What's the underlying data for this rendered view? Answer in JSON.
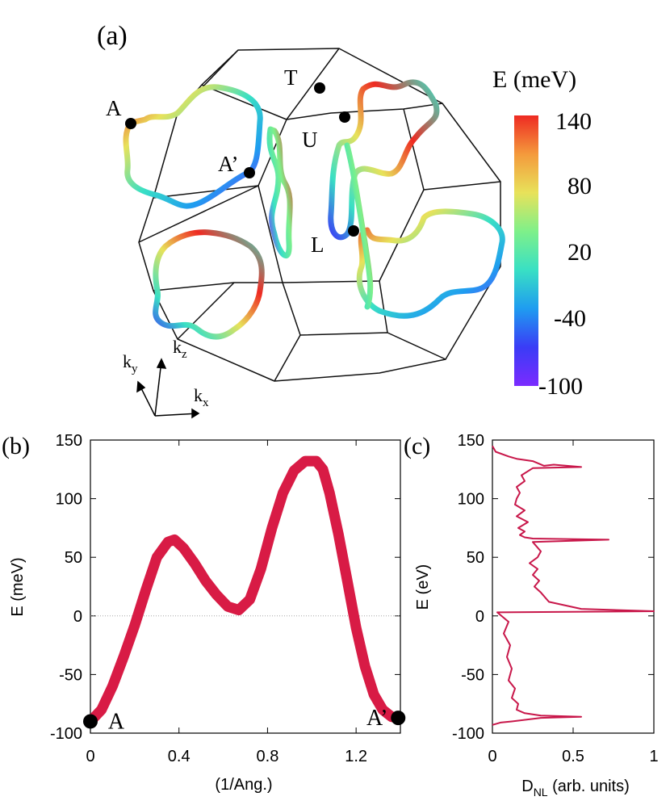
{
  "panel_a": {
    "label": "(a)",
    "points": [
      {
        "name": "point-A",
        "label": "A"
      },
      {
        "name": "point-A-prime",
        "label": "A’"
      },
      {
        "name": "point-T",
        "label": "T"
      },
      {
        "name": "point-U",
        "label": "U"
      },
      {
        "name": "point-L",
        "label": "L"
      }
    ],
    "axes": {
      "ky": "k",
      "ky_sub": "y",
      "kz": "k",
      "kz_sub": "z",
      "kx": "k",
      "kx_sub": "x"
    },
    "colorbar": {
      "title": "E (meV)",
      "ticks": [
        "140",
        "80",
        "20",
        "-40",
        "-100"
      ],
      "min": -100,
      "max": 140,
      "colors": [
        "#7b2bff",
        "#3a3cf6",
        "#1f9cf0",
        "#39e0c4",
        "#7ef08a",
        "#e8e25a",
        "#f49a3c",
        "#ee2a22"
      ]
    }
  },
  "chart_data": [
    {
      "id": "b",
      "label": "(b)",
      "type": "line",
      "title": "",
      "xlabel": "(1/Ang.)",
      "ylabel": "E (meV)",
      "xlim": [
        0,
        1.4
      ],
      "ylim": [
        -100,
        150
      ],
      "xticks": [
        "0",
        "0.4",
        "0.8",
        "1.2"
      ],
      "xtick_values": [
        0,
        0.4,
        0.8,
        1.2
      ],
      "yticks": [
        "150",
        "100",
        "50",
        "0",
        "-50",
        "-100"
      ],
      "ytick_values": [
        150,
        100,
        50,
        0,
        -50,
        -100
      ],
      "zero_line": true,
      "series": [
        {
          "name": "band A-A'",
          "color": "#d81b45",
          "x": [
            0,
            0.05,
            0.1,
            0.15,
            0.2,
            0.25,
            0.3,
            0.35,
            0.38,
            0.42,
            0.47,
            0.52,
            0.57,
            0.62,
            0.67,
            0.72,
            0.77,
            0.82,
            0.87,
            0.92,
            0.97,
            1.02,
            1.05,
            1.08,
            1.12,
            1.16,
            1.2,
            1.24,
            1.28,
            1.32,
            1.36,
            1.39
          ],
          "y": [
            -90,
            -80,
            -60,
            -35,
            -8,
            22,
            50,
            63,
            65,
            58,
            45,
            30,
            18,
            8,
            5,
            14,
            40,
            75,
            105,
            124,
            132,
            132,
            125,
            105,
            70,
            30,
            -10,
            -43,
            -67,
            -80,
            -86,
            -87
          ]
        }
      ],
      "endpoints": [
        {
          "name": "endpoint-A",
          "label": "A",
          "x": 0.0,
          "y": -90
        },
        {
          "name": "endpoint-A-prime",
          "label": "A’",
          "x": 1.39,
          "y": -87
        }
      ]
    },
    {
      "id": "c",
      "label": "(c)",
      "type": "line",
      "title": "",
      "xlabel_main": "D",
      "xlabel_sub": "NL",
      "xlabel_rest": " (arb. units)",
      "ylabel": "E (eV)",
      "xlim": [
        0,
        1
      ],
      "ylim": [
        -100,
        150
      ],
      "xticks": [
        "0",
        "0.5",
        "1"
      ],
      "xtick_values": [
        0,
        0.5,
        1
      ],
      "yticks": [
        "150",
        "100",
        "50",
        "0",
        "-50",
        "-100"
      ],
      "ytick_values": [
        150,
        100,
        50,
        0,
        -50,
        -100
      ],
      "series": [
        {
          "name": "D_NL",
          "color": "#c8174a",
          "x": [
            0.0,
            0.02,
            0.1,
            0.15,
            0.25,
            0.32,
            0.38,
            0.55,
            0.25,
            0.18,
            0.2,
            0.15,
            0.17,
            0.15,
            0.14,
            0.2,
            0.15,
            0.22,
            0.16,
            0.2,
            0.17,
            0.2,
            0.25,
            0.72,
            0.25,
            0.3,
            0.28,
            0.23,
            0.28,
            0.25,
            0.29,
            0.26,
            0.3,
            0.35,
            0.55,
            1.0,
            0.03,
            0.1,
            0.07,
            0.11,
            0.09,
            0.12,
            0.1,
            0.14,
            0.12,
            0.16,
            0.15,
            0.2,
            0.3,
            0.55,
            0.3,
            0.12,
            0.05,
            0.0
          ],
          "y": [
            145,
            140,
            136,
            134,
            132,
            128,
            129,
            127,
            126,
            120,
            115,
            110,
            105,
            100,
            95,
            90,
            85,
            80,
            75,
            72,
            69,
            67,
            66,
            65,
            63,
            55,
            50,
            45,
            40,
            35,
            30,
            25,
            20,
            12,
            6,
            4,
            3,
            -5,
            -15,
            -25,
            -35,
            -45,
            -55,
            -62,
            -70,
            -75,
            -80,
            -83,
            -85,
            -86,
            -87,
            -90,
            -91,
            -93
          ]
        }
      ]
    }
  ]
}
